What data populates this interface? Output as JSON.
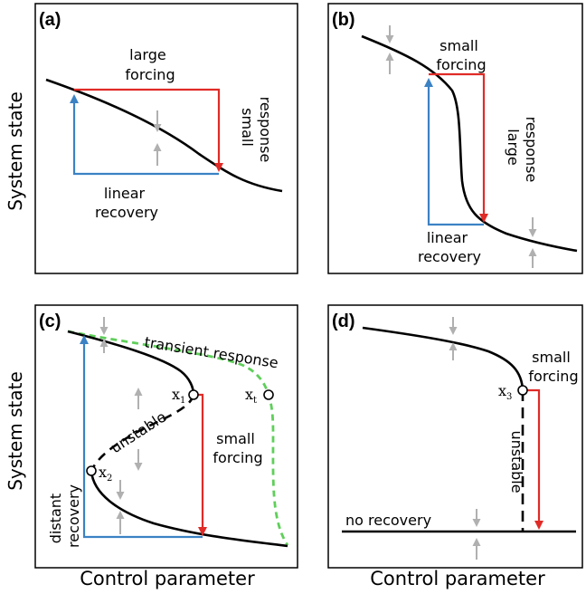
{
  "axes": {
    "ylabel_top": "System state",
    "ylabel_bottom": "System state",
    "xlabel_left": "Control parameter",
    "xlabel_right": "Control parameter"
  },
  "panels": {
    "a": {
      "label": "(a)",
      "forcing": [
        "large",
        "forcing"
      ],
      "response": [
        "small",
        "response"
      ],
      "recovery": [
        "linear",
        "recovery"
      ]
    },
    "b": {
      "label": "(b)",
      "forcing": [
        "small",
        "forcing"
      ],
      "response": [
        "large",
        "response"
      ],
      "recovery": [
        "linear",
        "recovery"
      ]
    },
    "c": {
      "label": "(c)",
      "transient": "transient response",
      "unstable": "unstable",
      "forcing": [
        "small",
        "forcing"
      ],
      "recovery": [
        "distant",
        "recovery"
      ],
      "x1": "x",
      "x1_sub": "1",
      "xt": "x",
      "xt_sub": "t",
      "x2": "x",
      "x2_sub": "2"
    },
    "d": {
      "label": "(d)",
      "forcing": [
        "small",
        "forcing"
      ],
      "unstable": "unstable",
      "no_recovery": "no recovery",
      "x3": "x",
      "x3_sub": "3"
    }
  },
  "colors": {
    "forcing": "#e02b27",
    "recovery": "#3b82c4",
    "transient": "#5fcf5a",
    "stability_arrow": "#b0b0b0",
    "curve": "#000000"
  }
}
